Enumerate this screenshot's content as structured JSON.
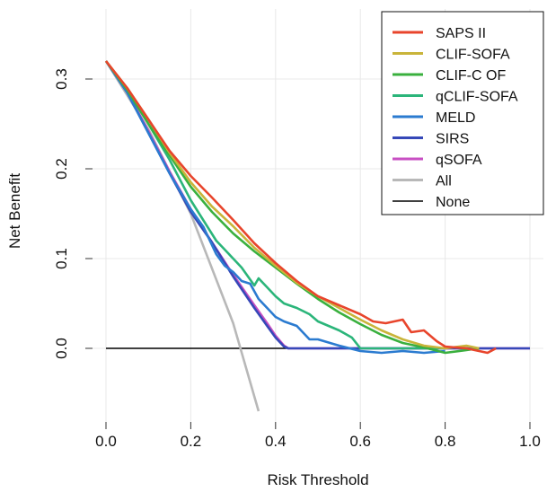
{
  "chart_data": {
    "type": "line",
    "xlabel": "Risk Threshold",
    "ylabel": "Net Benefit",
    "xlim": [
      0,
      1.0
    ],
    "ylim": [
      -0.07,
      0.36
    ],
    "xticks": [
      0.0,
      0.2,
      0.4,
      0.6,
      0.8,
      1.0
    ],
    "xtick_labels": [
      "0.0",
      "0.2",
      "0.4",
      "0.6",
      "0.8",
      "1.0"
    ],
    "yticks": [
      0.0,
      0.1,
      0.2,
      0.3
    ],
    "ytick_labels": [
      "0.0",
      "0.1",
      "0.2",
      "0.3"
    ],
    "grid": true,
    "legend_position": "top-right",
    "series": [
      {
        "name": "SAPS II",
        "color": "#e8452c",
        "x": [
          0,
          0.05,
          0.1,
          0.15,
          0.2,
          0.25,
          0.3,
          0.35,
          0.4,
          0.45,
          0.5,
          0.55,
          0.6,
          0.63,
          0.66,
          0.7,
          0.72,
          0.75,
          0.78,
          0.8,
          0.85,
          0.9,
          0.92
        ],
        "y": [
          0.32,
          0.29,
          0.255,
          0.22,
          0.192,
          0.168,
          0.143,
          0.117,
          0.095,
          0.075,
          0.058,
          0.048,
          0.038,
          0.03,
          0.028,
          0.032,
          0.018,
          0.02,
          0.008,
          0.002,
          0.0,
          -0.005,
          0.0
        ]
      },
      {
        "name": "CLIF-SOFA",
        "color": "#c9b43a",
        "x": [
          0,
          0.05,
          0.1,
          0.15,
          0.2,
          0.25,
          0.3,
          0.35,
          0.4,
          0.45,
          0.5,
          0.55,
          0.6,
          0.65,
          0.7,
          0.75,
          0.8,
          0.85,
          0.88
        ],
        "y": [
          0.32,
          0.29,
          0.255,
          0.218,
          0.185,
          0.158,
          0.136,
          0.112,
          0.092,
          0.073,
          0.058,
          0.045,
          0.032,
          0.02,
          0.01,
          0.003,
          0.0,
          0.003,
          0.0
        ]
      },
      {
        "name": "CLIF-C OF",
        "color": "#3ab03e",
        "x": [
          0,
          0.05,
          0.1,
          0.15,
          0.2,
          0.25,
          0.3,
          0.35,
          0.4,
          0.45,
          0.5,
          0.55,
          0.6,
          0.65,
          0.7,
          0.75,
          0.8,
          0.85,
          0.88
        ],
        "y": [
          0.32,
          0.288,
          0.25,
          0.215,
          0.18,
          0.152,
          0.128,
          0.108,
          0.09,
          0.072,
          0.055,
          0.04,
          0.027,
          0.015,
          0.006,
          0.001,
          -0.005,
          -0.002,
          0.0
        ]
      },
      {
        "name": "qCLIF-SOFA",
        "color": "#2bb57a",
        "x": [
          0,
          0.05,
          0.1,
          0.15,
          0.2,
          0.22,
          0.26,
          0.28,
          0.3,
          0.32,
          0.35,
          0.36,
          0.38,
          0.4,
          0.42,
          0.45,
          0.48,
          0.5,
          0.55,
          0.58,
          0.6,
          0.65,
          0.7,
          0.75,
          0.8
        ],
        "y": [
          0.32,
          0.288,
          0.25,
          0.21,
          0.165,
          0.15,
          0.12,
          0.11,
          0.1,
          0.09,
          0.07,
          0.078,
          0.068,
          0.058,
          0.05,
          0.045,
          0.038,
          0.03,
          0.02,
          0.012,
          0.0,
          0.0,
          0.0,
          0.0,
          0.0
        ]
      },
      {
        "name": "MELD",
        "color": "#2b7bd0",
        "x": [
          0,
          0.05,
          0.1,
          0.15,
          0.2,
          0.23,
          0.26,
          0.28,
          0.3,
          0.32,
          0.34,
          0.36,
          0.38,
          0.4,
          0.42,
          0.45,
          0.48,
          0.5,
          0.55,
          0.6,
          0.65,
          0.7,
          0.75,
          0.8
        ],
        "y": [
          0.32,
          0.285,
          0.24,
          0.195,
          0.155,
          0.135,
          0.105,
          0.092,
          0.085,
          0.075,
          0.072,
          0.055,
          0.045,
          0.035,
          0.03,
          0.025,
          0.01,
          0.01,
          0.003,
          -0.003,
          -0.005,
          -0.003,
          -0.005,
          -0.003
        ]
      },
      {
        "name": "SIRS",
        "color": "#3648b8",
        "x": [
          0,
          0.05,
          0.1,
          0.15,
          0.2,
          0.25,
          0.3,
          0.35,
          0.38,
          0.4,
          0.42,
          0.43,
          0.5,
          0.6,
          0.7,
          0.8,
          0.9,
          1.0
        ],
        "y": [
          0.32,
          0.285,
          0.24,
          0.195,
          0.152,
          0.118,
          0.08,
          0.045,
          0.025,
          0.012,
          0.002,
          0.0,
          0.0,
          0.0,
          0.0,
          0.0,
          0.0,
          0.0
        ]
      },
      {
        "name": "qSOFA",
        "color": "#c84fc3",
        "x": [
          0,
          0.05,
          0.1,
          0.15,
          0.2,
          0.25,
          0.3,
          0.35,
          0.38,
          0.4,
          0.42,
          0.43,
          0.5,
          0.6,
          0.7,
          0.8,
          0.9,
          1.0
        ],
        "y": [
          0.32,
          0.286,
          0.242,
          0.197,
          0.155,
          0.118,
          0.082,
          0.048,
          0.028,
          0.014,
          0.003,
          0.0,
          0.0,
          0.0,
          0.0,
          0.0,
          0.0,
          0.0
        ]
      },
      {
        "name": "All",
        "color": "#b8b8b8",
        "x": [
          0,
          0.1,
          0.2,
          0.3,
          0.36
        ],
        "y": [
          0.32,
          0.244,
          0.15,
          0.028,
          -0.07
        ]
      },
      {
        "name": "None",
        "color": "#000000",
        "x": [
          0,
          1.0
        ],
        "y": [
          0,
          0
        ]
      }
    ]
  }
}
